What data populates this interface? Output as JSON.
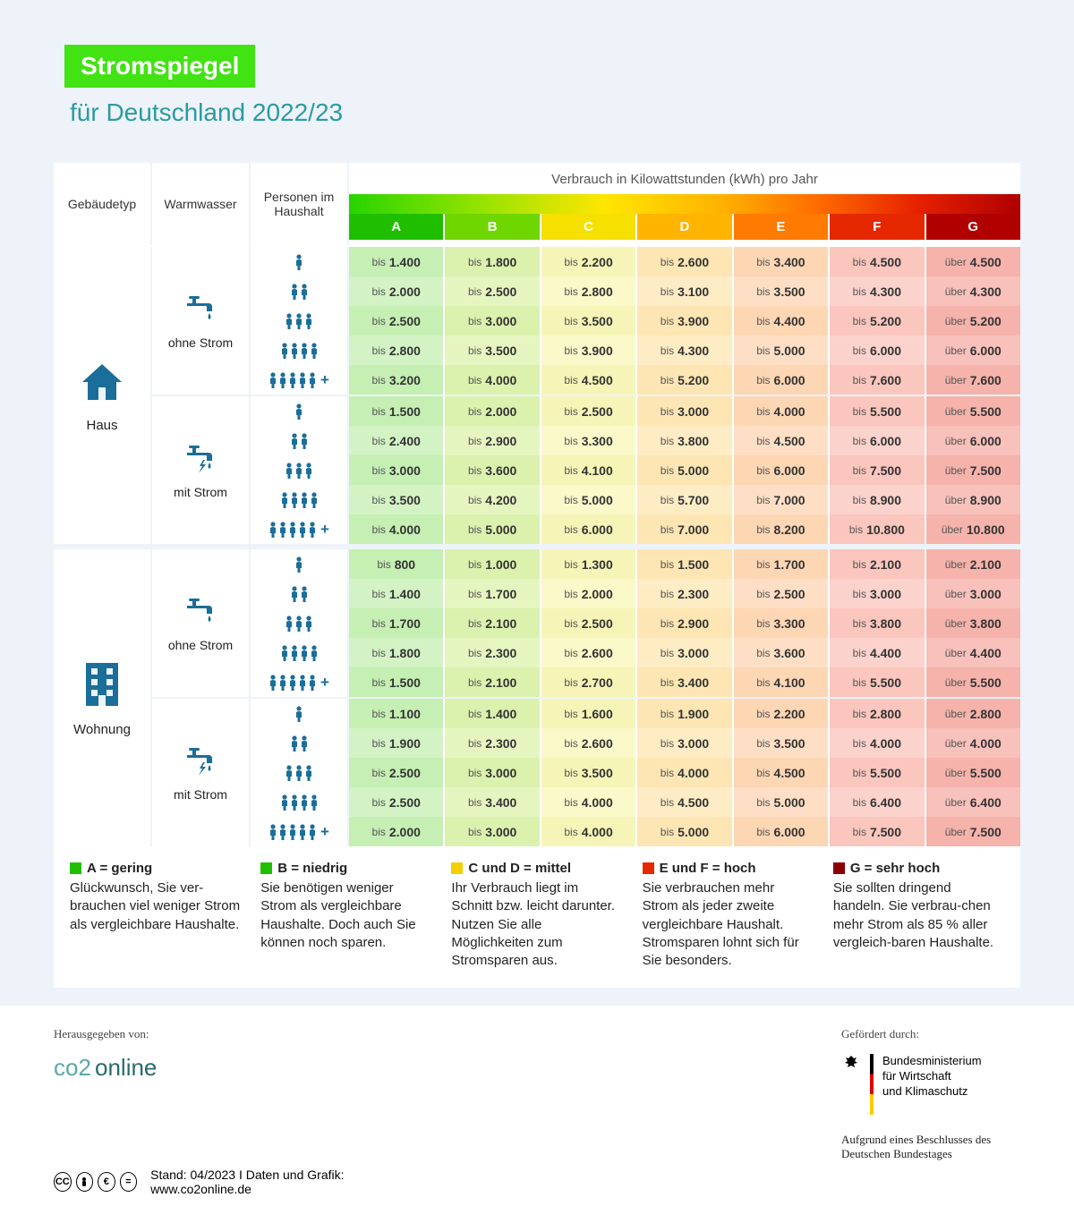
{
  "title": "Stromspiegel",
  "subtitle": "für Deutschland 2022/23",
  "headers": {
    "building": "Gebäudetyp",
    "water": "Warmwasser",
    "persons": "Personen im Haushalt",
    "consumption_title": "Verbrauch in Kilowattstunden (kWh) pro Jahr"
  },
  "classes": [
    "A",
    "B",
    "C",
    "D",
    "E",
    "F",
    "G"
  ],
  "class_colors": {
    "A": "#1fbf00",
    "B": "#6fd600",
    "C": "#f5e000",
    "D": "#ffb400",
    "E": "#ff7a00",
    "F": "#e52800",
    "G": "#b00000"
  },
  "cell_bg_colors": {
    "A": "#d3f3c4",
    "B": "#e5f5c0",
    "C": "#fbf8c9",
    "D": "#feecc4",
    "E": "#fedfc5",
    "F": "#fcd2cc",
    "G": "#f8c1bb"
  },
  "prefix_bis": "bis",
  "prefix_uber": "über",
  "buildings": [
    {
      "label": "Haus",
      "icon": "house",
      "water_groups": [
        {
          "label": "ohne Strom",
          "icon": "tap",
          "rows": [
            {
              "persons": 1,
              "values": [
                "1.400",
                "1.800",
                "2.200",
                "2.600",
                "3.400",
                "4.500",
                "4.500"
              ]
            },
            {
              "persons": 2,
              "values": [
                "2.000",
                "2.500",
                "2.800",
                "3.100",
                "3.500",
                "4.300",
                "4.300"
              ]
            },
            {
              "persons": 3,
              "values": [
                "2.500",
                "3.000",
                "3.500",
                "3.900",
                "4.400",
                "5.200",
                "5.200"
              ]
            },
            {
              "persons": 4,
              "values": [
                "2.800",
                "3.500",
                "3.900",
                "4.300",
                "5.000",
                "6.000",
                "6.000"
              ]
            },
            {
              "persons": 5,
              "plus": true,
              "values": [
                "3.200",
                "4.000",
                "4.500",
                "5.200",
                "6.000",
                "7.600",
                "7.600"
              ]
            }
          ]
        },
        {
          "label": "mit Strom",
          "icon": "tap-bolt",
          "rows": [
            {
              "persons": 1,
              "values": [
                "1.500",
                "2.000",
                "2.500",
                "3.000",
                "4.000",
                "5.500",
                "5.500"
              ]
            },
            {
              "persons": 2,
              "values": [
                "2.400",
                "2.900",
                "3.300",
                "3.800",
                "4.500",
                "6.000",
                "6.000"
              ]
            },
            {
              "persons": 3,
              "values": [
                "3.000",
                "3.600",
                "4.100",
                "5.000",
                "6.000",
                "7.500",
                "7.500"
              ]
            },
            {
              "persons": 4,
              "values": [
                "3.500",
                "4.200",
                "5.000",
                "5.700",
                "7.000",
                "8.900",
                "8.900"
              ]
            },
            {
              "persons": 5,
              "plus": true,
              "values": [
                "4.000",
                "5.000",
                "6.000",
                "7.000",
                "8.200",
                "10.800",
                "10.800"
              ]
            }
          ]
        }
      ]
    },
    {
      "label": "Wohnung",
      "icon": "apartment",
      "water_groups": [
        {
          "label": "ohne Strom",
          "icon": "tap",
          "rows": [
            {
              "persons": 1,
              "values": [
                "800",
                "1.000",
                "1.300",
                "1.500",
                "1.700",
                "2.100",
                "2.100"
              ]
            },
            {
              "persons": 2,
              "values": [
                "1.400",
                "1.700",
                "2.000",
                "2.300",
                "2.500",
                "3.000",
                "3.000"
              ]
            },
            {
              "persons": 3,
              "values": [
                "1.700",
                "2.100",
                "2.500",
                "2.900",
                "3.300",
                "3.800",
                "3.800"
              ]
            },
            {
              "persons": 4,
              "values": [
                "1.800",
                "2.300",
                "2.600",
                "3.000",
                "3.600",
                "4.400",
                "4.400"
              ]
            },
            {
              "persons": 5,
              "plus": true,
              "values": [
                "1.500",
                "2.100",
                "2.700",
                "3.400",
                "4.100",
                "5.500",
                "5.500"
              ]
            }
          ]
        },
        {
          "label": "mit Strom",
          "icon": "tap-bolt",
          "rows": [
            {
              "persons": 1,
              "values": [
                "1.100",
                "1.400",
                "1.600",
                "1.900",
                "2.200",
                "2.800",
                "2.800"
              ]
            },
            {
              "persons": 2,
              "values": [
                "1.900",
                "2.300",
                "2.600",
                "3.000",
                "3.500",
                "4.000",
                "4.000"
              ]
            },
            {
              "persons": 3,
              "values": [
                "2.500",
                "3.000",
                "3.500",
                "4.000",
                "4.500",
                "5.500",
                "5.500"
              ]
            },
            {
              "persons": 4,
              "values": [
                "2.500",
                "3.400",
                "4.000",
                "4.500",
                "5.000",
                "6.400",
                "6.400"
              ]
            },
            {
              "persons": 5,
              "plus": true,
              "values": [
                "2.000",
                "3.000",
                "4.000",
                "5.000",
                "6.000",
                "7.500",
                "7.500"
              ]
            }
          ]
        }
      ]
    }
  ],
  "legend": [
    {
      "sq": "#1fbf00",
      "title": "A = gering",
      "text": "Glückwunsch, Sie ver-brauchen viel weniger Strom als vergleichbare Haushalte."
    },
    {
      "sq": "#1fbf00",
      "title": "B = niedrig",
      "text": "Sie benötigen weniger Strom als vergleichbare Haushalte. Doch auch Sie können noch sparen."
    },
    {
      "sq": "#f5d000",
      "title": "C und D = mittel",
      "text": "Ihr Verbrauch liegt im Schnitt bzw. leicht darunter. Nutzen Sie alle Möglichkeiten zum Stromsparen aus."
    },
    {
      "sq": "#e52800",
      "title": "E und F = hoch",
      "text": "Sie verbrauchen mehr Strom als jeder zweite vergleichbare Haushalt. Stromsparen lohnt sich für Sie besonders."
    },
    {
      "sq": "#8a0000",
      "title": "G = sehr hoch",
      "text": "Sie sollten dringend handeln. Sie verbrau-chen mehr Strom als 85 % aller vergleich-baren Haushalte."
    }
  ],
  "footer": {
    "publisher_label": "Herausgegeben von:",
    "funding_label": "Gefördert durch:",
    "bmwk_line1": "Bundesministerium",
    "bmwk_line2": "für Wirtschaft",
    "bmwk_line3": "und Klimaschutz",
    "funding_note": "Aufgrund eines Beschlusses des Deutschen Bundestages",
    "stand": "Stand: 04/2023  I  Daten und Grafik: www.co2online.de",
    "cc_icons": [
      "cc",
      "BY",
      "NC",
      "ND"
    ]
  },
  "colors": {
    "brand_green": "#41e313",
    "subtitle": "#2a9aa3",
    "icon_blue": "#1b6e99",
    "page_bg": "#edf3f9"
  }
}
